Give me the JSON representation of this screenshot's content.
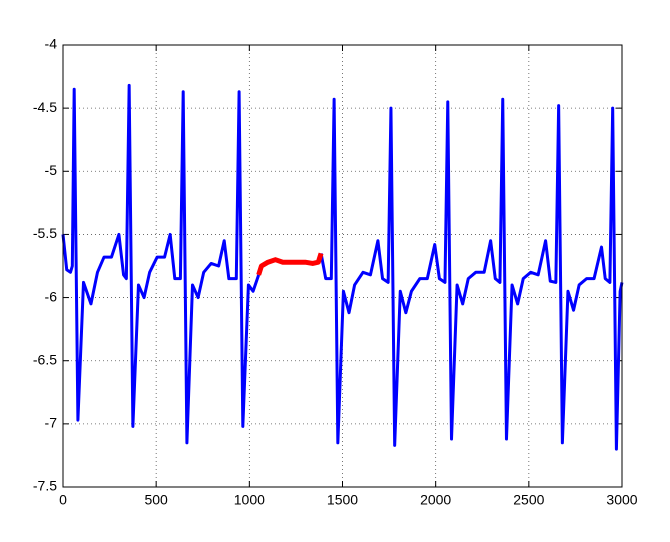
{
  "chart_data": {
    "type": "line",
    "x": [
      0,
      20,
      40,
      50,
      60,
      80,
      110,
      150,
      185,
      220,
      260,
      300,
      325,
      340,
      355,
      375,
      405,
      435,
      465,
      505,
      545,
      575,
      600,
      630,
      645,
      665,
      695,
      725,
      755,
      795,
      835,
      865,
      890,
      930,
      945,
      965,
      995,
      1020,
      1050,
      1065,
      1100,
      1140,
      1180,
      1220,
      1260,
      1300,
      1340,
      1370,
      1385,
      1410,
      1440,
      1455,
      1475,
      1505,
      1535,
      1565,
      1610,
      1650,
      1690,
      1715,
      1745,
      1760,
      1780,
      1810,
      1840,
      1870,
      1915,
      1955,
      1995,
      2020,
      2050,
      2065,
      2085,
      2115,
      2145,
      2175,
      2215,
      2260,
      2295,
      2320,
      2345,
      2360,
      2380,
      2410,
      2440,
      2470,
      2510,
      2550,
      2590,
      2615,
      2645,
      2660,
      2680,
      2710,
      2740,
      2770,
      2810,
      2850,
      2890,
      2910,
      2935,
      2950,
      2970,
      2990,
      3000
    ],
    "series": [
      {
        "color": "#0000ff",
        "values": [
          -5.5,
          -5.78,
          -5.8,
          -5.75,
          -4.35,
          -6.97,
          -5.88,
          -6.05,
          -5.8,
          -5.68,
          -5.68,
          -5.5,
          -5.82,
          -5.85,
          -4.32,
          -7.02,
          -5.9,
          -6.0,
          -5.8,
          -5.68,
          -5.68,
          -5.5,
          -5.85,
          -5.85,
          -4.37,
          -7.15,
          -5.9,
          -6.0,
          -5.8,
          -5.73,
          -5.75,
          -5.55,
          -5.85,
          -5.85,
          -4.37,
          -7.02,
          -5.9,
          -5.95,
          -5.82,
          null,
          null,
          null,
          null,
          null,
          null,
          null,
          null,
          null,
          -5.65,
          -5.85,
          -5.85,
          -4.43,
          -7.15,
          -5.95,
          -6.12,
          -5.9,
          -5.8,
          -5.82,
          -5.55,
          -5.85,
          -5.88,
          -4.5,
          -7.17,
          -5.95,
          -6.12,
          -5.95,
          -5.85,
          -5.85,
          -5.58,
          -5.85,
          -5.88,
          -4.45,
          -7.12,
          -5.9,
          -6.05,
          -5.85,
          -5.8,
          -5.8,
          -5.55,
          -5.85,
          -5.88,
          -4.43,
          -7.12,
          -5.9,
          -6.05,
          -5.85,
          -5.8,
          -5.82,
          -5.55,
          -5.87,
          -5.88,
          -4.48,
          -7.15,
          -5.95,
          -6.1,
          -5.9,
          -5.85,
          -5.85,
          -5.6,
          -5.85,
          -5.88,
          -4.5,
          -7.2,
          -5.95,
          -5.88
        ]
      },
      {
        "color": "#ff0000",
        "values": [
          null,
          null,
          null,
          null,
          null,
          null,
          null,
          null,
          null,
          null,
          null,
          null,
          null,
          null,
          null,
          null,
          null,
          null,
          null,
          null,
          null,
          null,
          null,
          null,
          null,
          null,
          null,
          null,
          null,
          null,
          null,
          null,
          null,
          null,
          null,
          null,
          null,
          null,
          -5.82,
          -5.75,
          -5.72,
          -5.7,
          -5.72,
          -5.72,
          -5.72,
          -5.72,
          -5.73,
          -5.72,
          -5.65,
          null,
          null,
          null,
          null,
          null,
          null,
          null,
          null,
          null,
          null,
          null,
          null,
          null,
          null,
          null,
          null,
          null,
          null,
          null,
          null,
          null,
          null,
          null,
          null,
          null,
          null,
          null,
          null,
          null,
          null,
          null,
          null,
          null,
          null,
          null,
          null,
          null,
          null,
          null,
          null,
          null,
          null,
          null,
          null,
          null,
          null,
          null,
          null,
          null,
          null,
          null,
          null,
          null,
          null,
          null,
          null
        ]
      }
    ],
    "xlim": [
      0,
      3000
    ],
    "xticks": [
      0,
      500,
      1000,
      1500,
      2000,
      2500,
      3000
    ],
    "ylim": [
      -7.5,
      -4
    ],
    "yticks": [
      -7.5,
      -7,
      -6.5,
      -6,
      -5.5,
      -5,
      -4.5,
      -4
    ],
    "grid": true
  }
}
